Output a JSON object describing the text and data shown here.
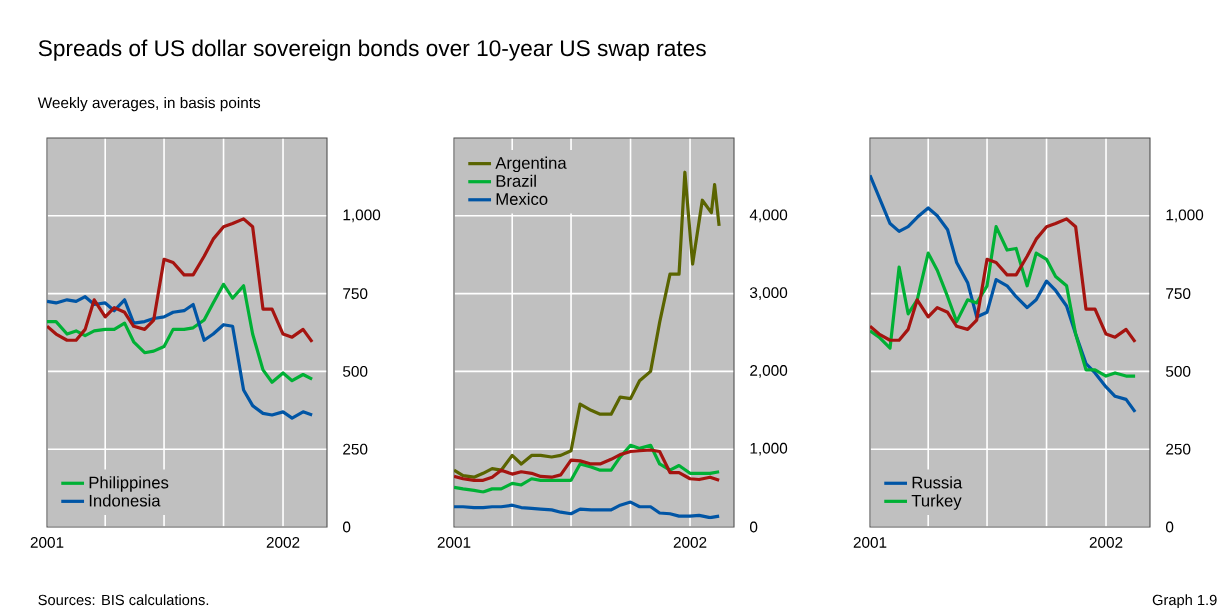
{
  "chart_data": [
    {
      "type": "line",
      "title": "Spreads of US dollar sovereign bonds over 10-year US swap rates",
      "subtitle": "Weekly averages, in basis points",
      "annotations": [
        "Sources: BIS calculations."
      ],
      "x": [
        "2001-01-01",
        "2001-01-15",
        "2001-02-01",
        "2001-02-15",
        "2001-03-01",
        "2001-03-15",
        "2001-04-01",
        "2001-04-15",
        "2001-05-01",
        "2001-05-15",
        "2001-06-01",
        "2001-06-15",
        "2001-07-01",
        "2001-07-15",
        "2001-08-01",
        "2001-08-15",
        "2001-09-01",
        "2001-09-15",
        "2001-10-01",
        "2001-10-15",
        "2001-11-01",
        "2001-11-15",
        "2001-12-01",
        "2001-12-15",
        "2002-01-01",
        "2002-01-15",
        "2002-02-01",
        "2002-02-15"
      ],
      "xlim": [
        "2001-01-01",
        "2002-03-10"
      ],
      "xticks": [
        {
          "value": "2001-01-01",
          "label": "2001"
        },
        {
          "value": "2001-04-01",
          "label": null
        },
        {
          "value": "2001-07-01",
          "label": null
        },
        {
          "value": "2001-10-01",
          "label": null
        },
        {
          "value": "2002-01-01",
          "label": "2002"
        }
      ],
      "ylim": [
        0,
        1250
      ],
      "yticks": [
        0,
        250,
        500,
        750,
        {
          "value": 1000,
          "label": "1,000"
        }
      ],
      "grid": true,
      "legend": "bottom left",
      "series": [
        {
          "name": "Philippines",
          "color": "#00b035",
          "values": [
            660,
            660,
            620,
            630,
            615,
            630,
            635,
            635,
            655,
            595,
            560,
            565,
            580,
            635,
            635,
            640,
            665,
            720,
            780,
            735,
            775,
            620,
            505,
            465,
            495,
            470,
            490,
            475
          ]
        },
        {
          "name": "Indonesia",
          "color": "#0055a5",
          "values": [
            725,
            720,
            730,
            725,
            740,
            715,
            720,
            695,
            730,
            655,
            660,
            670,
            675,
            690,
            695,
            715,
            600,
            620,
            650,
            645,
            440,
            390,
            365,
            360,
            370,
            350,
            370,
            360
          ]
        },
        {
          "color": "#a51410",
          "values": [
            645,
            620,
            600,
            600,
            635,
            730,
            675,
            705,
            690,
            645,
            635,
            665,
            860,
            850,
            810,
            810,
            870,
            925,
            965,
            975,
            990,
            965,
            700,
            700,
            620,
            610,
            635,
            595
          ]
        }
      ]
    },
    {
      "type": "line",
      "x": [
        "2001-01-01",
        "2001-01-15",
        "2001-02-01",
        "2001-02-15",
        "2001-03-01",
        "2001-03-15",
        "2001-04-01",
        "2001-04-15",
        "2001-05-01",
        "2001-05-15",
        "2001-06-01",
        "2001-06-15",
        "2001-07-01",
        "2001-07-15",
        "2001-08-01",
        "2001-08-15",
        "2001-09-01",
        "2001-09-15",
        "2001-10-01",
        "2001-10-15",
        "2001-11-01",
        "2001-11-15",
        "2001-12-01",
        "2001-12-15",
        "2002-01-01",
        "2002-01-15",
        "2002-02-01",
        "2002-02-15"
      ],
      "xlim": [
        "2001-01-01",
        "2002-03-10"
      ],
      "xticks": [
        {
          "value": "2001-01-01",
          "label": "2001"
        },
        {
          "value": "2001-04-01",
          "label": null
        },
        {
          "value": "2001-07-01",
          "label": null
        },
        {
          "value": "2001-10-01",
          "label": null
        },
        {
          "value": "2002-01-01",
          "label": "2002"
        }
      ],
      "ylim": [
        0,
        5000
      ],
      "yticks": [
        0,
        {
          "value": 1000,
          "label": "1,000"
        },
        {
          "value": 2000,
          "label": "2,000"
        },
        {
          "value": 3000,
          "label": "3,000"
        },
        {
          "value": 4000,
          "label": "4,000"
        }
      ],
      "grid": true,
      "legend": "top left",
      "series": [
        {
          "name": "Argentina",
          "color": "#5a6400",
          "x": [
            "2001-01-01",
            "2001-01-15",
            "2001-02-01",
            "2001-02-15",
            "2001-03-01",
            "2001-03-15",
            "2001-04-01",
            "2001-04-15",
            "2001-05-01",
            "2001-05-15",
            "2001-06-01",
            "2001-06-15",
            "2001-07-01",
            "2001-07-15",
            "2001-08-01",
            "2001-08-15",
            "2001-09-01",
            "2001-09-15",
            "2001-10-01",
            "2001-10-15",
            "2001-11-01",
            "2001-11-15",
            "2001-12-01",
            "2001-12-15",
            "2001-12-24",
            "2002-01-05",
            "2002-01-20",
            "2002-02-03",
            "2002-02-08",
            "2002-02-15"
          ],
          "values": [
            730,
            660,
            640,
            690,
            750,
            730,
            920,
            810,
            920,
            920,
            900,
            920,
            980,
            1580,
            1500,
            1450,
            1450,
            1670,
            1650,
            1880,
            2000,
            2630,
            3250,
            3250,
            4560,
            3380,
            4200,
            4040,
            4400,
            3870
          ]
        },
        {
          "name": "Brazil",
          "color": "#00b035",
          "values": [
            510,
            490,
            470,
            450,
            490,
            490,
            560,
            540,
            620,
            600,
            600,
            600,
            600,
            810,
            770,
            730,
            730,
            900,
            1050,
            1010,
            1050,
            810,
            730,
            790,
            690,
            690,
            690,
            710
          ]
        },
        {
          "name": "Mexico",
          "color": "#0055a5",
          "values": [
            260,
            260,
            250,
            250,
            260,
            260,
            280,
            250,
            240,
            230,
            220,
            190,
            170,
            230,
            220,
            220,
            220,
            280,
            320,
            260,
            260,
            180,
            170,
            140,
            140,
            150,
            120,
            140
          ]
        },
        {
          "color": "#a51410",
          "values": [
            650,
            620,
            600,
            600,
            640,
            730,
            680,
            710,
            690,
            650,
            640,
            670,
            860,
            850,
            810,
            810,
            870,
            930,
            970,
            980,
            990,
            970,
            700,
            700,
            620,
            610,
            640,
            600
          ]
        }
      ]
    },
    {
      "type": "line",
      "annotations": [
        "Graph 1.9"
      ],
      "x": [
        "2001-01-01",
        "2001-01-15",
        "2001-02-01",
        "2001-02-15",
        "2001-03-01",
        "2001-03-15",
        "2001-04-01",
        "2001-04-15",
        "2001-05-01",
        "2001-05-15",
        "2001-06-01",
        "2001-06-15",
        "2001-07-01",
        "2001-07-15",
        "2001-08-01",
        "2001-08-15",
        "2001-09-01",
        "2001-09-15",
        "2001-10-01",
        "2001-10-15",
        "2001-11-01",
        "2001-11-15",
        "2001-12-01",
        "2001-12-15",
        "2002-01-01",
        "2002-01-15",
        "2002-02-01",
        "2002-02-15"
      ],
      "xlim": [
        "2001-01-01",
        "2002-03-10"
      ],
      "xticks": [
        {
          "value": "2001-01-01",
          "label": "2001"
        },
        {
          "value": "2001-04-01",
          "label": null
        },
        {
          "value": "2001-07-01",
          "label": null
        },
        {
          "value": "2001-10-01",
          "label": null
        },
        {
          "value": "2002-01-01",
          "label": "2002"
        }
      ],
      "ylim": [
        0,
        1250
      ],
      "yticks": [
        0,
        250,
        500,
        750,
        {
          "value": 1000,
          "label": "1,000"
        }
      ],
      "grid": true,
      "legend": "bottom left",
      "series": [
        {
          "name": "Russia",
          "color": "#0055a5",
          "values": [
            1130,
            1060,
            975,
            950,
            965,
            995,
            1025,
            1000,
            955,
            850,
            785,
            675,
            690,
            795,
            775,
            740,
            705,
            730,
            790,
            760,
            710,
            620,
            525,
            495,
            450,
            420,
            410,
            370
          ]
        },
        {
          "name": "Turkey",
          "color": "#00b035",
          "values": [
            630,
            610,
            575,
            835,
            685,
            730,
            880,
            825,
            740,
            660,
            730,
            720,
            775,
            965,
            890,
            895,
            775,
            880,
            860,
            805,
            775,
            620,
            505,
            505,
            485,
            495,
            485,
            485
          ]
        },
        {
          "color": "#a51410",
          "values": [
            645,
            620,
            600,
            600,
            635,
            730,
            675,
            705,
            690,
            645,
            635,
            665,
            860,
            850,
            810,
            810,
            870,
            925,
            965,
            975,
            990,
            965,
            700,
            700,
            620,
            610,
            635,
            595
          ]
        }
      ]
    }
  ]
}
